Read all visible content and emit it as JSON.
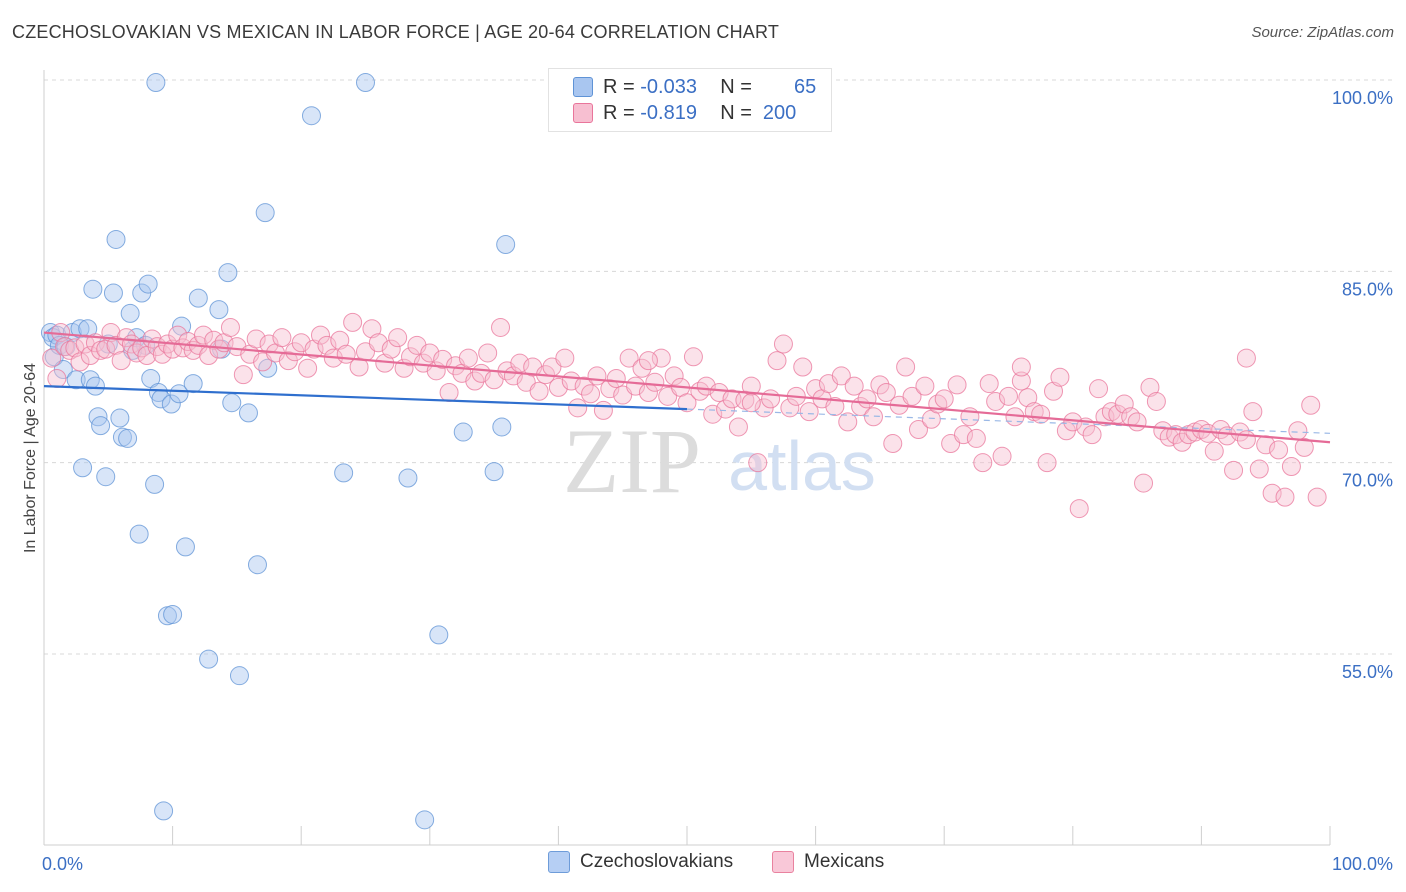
{
  "chart_data": {
    "type": "scatter",
    "title": "CZECHOSLOVAKIAN VS MEXICAN IN LABOR FORCE | AGE 20-64 CORRELATION CHART",
    "source": "Source: ZipAtlas.com",
    "xlabel": "",
    "ylabel": "In Labor Force | Age 20-64",
    "xlim": [
      0,
      100
    ],
    "ylim": [
      41,
      102.5
    ],
    "x_tick_labels": [
      "0.0%",
      "100.0%"
    ],
    "y_ticks": [
      100,
      85,
      70,
      55
    ],
    "y_tick_labels": [
      "100.0%",
      "85.0%",
      "70.0%",
      "55.0%"
    ],
    "grid": true,
    "legend_position": "top-center",
    "watermark": "ZIPatlas",
    "series": [
      {
        "name": "Czechoslovakians",
        "color_fill": "#a9c6f0",
        "color_stroke": "#5f93d6",
        "line_color": "#2f6fce",
        "R": "-0.033",
        "N": "65",
        "trend": {
          "x0": 0,
          "y0": 76.0,
          "x1": 50,
          "y1": 74.2,
          "dash_to_x": 100,
          "dash_to_y": 72.3
        },
        "points": [
          [
            0.5,
            80.2
          ],
          [
            0.7,
            79.8
          ],
          [
            1.0,
            80.0
          ],
          [
            0.8,
            78.3
          ],
          [
            1.2,
            79.2
          ],
          [
            1.5,
            77.3
          ],
          [
            1.7,
            79.1
          ],
          [
            2.2,
            80.2
          ],
          [
            2.5,
            76.5
          ],
          [
            2.8,
            80.5
          ],
          [
            3.0,
            69.6
          ],
          [
            3.4,
            80.5
          ],
          [
            3.6,
            76.5
          ],
          [
            3.8,
            83.6
          ],
          [
            4.0,
            76.0
          ],
          [
            4.2,
            73.6
          ],
          [
            4.4,
            72.9
          ],
          [
            4.8,
            68.9
          ],
          [
            5.0,
            79.3
          ],
          [
            5.4,
            83.3
          ],
          [
            5.6,
            87.5
          ],
          [
            5.9,
            73.5
          ],
          [
            6.1,
            72.0
          ],
          [
            6.5,
            71.9
          ],
          [
            6.7,
            81.7
          ],
          [
            6.9,
            78.8
          ],
          [
            7.2,
            79.8
          ],
          [
            7.4,
            64.4
          ],
          [
            7.6,
            83.3
          ],
          [
            7.9,
            79.2
          ],
          [
            8.1,
            84.0
          ],
          [
            8.3,
            76.6
          ],
          [
            8.6,
            68.3
          ],
          [
            8.7,
            99.8
          ],
          [
            8.9,
            75.5
          ],
          [
            9.1,
            75.0
          ],
          [
            9.3,
            42.7
          ],
          [
            9.6,
            58.0
          ],
          [
            9.9,
            74.6
          ],
          [
            10.0,
            58.1
          ],
          [
            10.5,
            75.4
          ],
          [
            10.7,
            80.7
          ],
          [
            11.0,
            63.4
          ],
          [
            11.6,
            76.2
          ],
          [
            12.0,
            82.9
          ],
          [
            12.8,
            54.6
          ],
          [
            13.6,
            82.0
          ],
          [
            13.8,
            78.9
          ],
          [
            14.3,
            84.9
          ],
          [
            14.6,
            74.7
          ],
          [
            15.2,
            53.3
          ],
          [
            15.9,
            73.9
          ],
          [
            16.6,
            62.0
          ],
          [
            17.2,
            89.6
          ],
          [
            17.4,
            77.4
          ],
          [
            20.8,
            97.2
          ],
          [
            23.3,
            69.2
          ],
          [
            25.0,
            99.8
          ],
          [
            28.3,
            68.8
          ],
          [
            29.6,
            42.0
          ],
          [
            30.7,
            56.5
          ],
          [
            32.6,
            72.4
          ],
          [
            35.0,
            69.3
          ],
          [
            35.6,
            72.8
          ],
          [
            35.9,
            87.1
          ]
        ]
      },
      {
        "name": "Mexicans",
        "color_fill": "#f7bfd1",
        "color_stroke": "#e9759b",
        "line_color": "#e56b97",
        "R": "-0.819",
        "N": "200",
        "trend": {
          "x0": 0,
          "y0": 80.2,
          "x1": 100,
          "y1": 71.6
        },
        "points": [
          [
            0.6,
            78.2
          ],
          [
            1.0,
            76.6
          ],
          [
            1.3,
            80.2
          ],
          [
            1.6,
            79.1
          ],
          [
            2.0,
            78.8
          ],
          [
            2.4,
            79.0
          ],
          [
            2.8,
            77.9
          ],
          [
            3.2,
            79.3
          ],
          [
            3.6,
            78.4
          ],
          [
            4.0,
            79.4
          ],
          [
            4.4,
            78.8
          ],
          [
            4.8,
            78.9
          ],
          [
            5.2,
            80.2
          ],
          [
            5.6,
            79.2
          ],
          [
            6.0,
            78.0
          ],
          [
            6.4,
            79.8
          ],
          [
            6.8,
            79.3
          ],
          [
            7.2,
            78.6
          ],
          [
            7.6,
            79.0
          ],
          [
            8.0,
            78.4
          ],
          [
            8.4,
            79.7
          ],
          [
            8.8,
            79.1
          ],
          [
            9.2,
            78.5
          ],
          [
            9.6,
            79.3
          ],
          [
            10.0,
            78.9
          ],
          [
            10.4,
            80.0
          ],
          [
            10.8,
            79.0
          ],
          [
            11.2,
            79.5
          ],
          [
            11.6,
            78.8
          ],
          [
            12.0,
            79.2
          ],
          [
            12.4,
            80.0
          ],
          [
            12.8,
            78.4
          ],
          [
            13.2,
            79.6
          ],
          [
            13.6,
            78.9
          ],
          [
            14.0,
            79.4
          ],
          [
            14.5,
            80.6
          ],
          [
            15.0,
            79.1
          ],
          [
            15.5,
            76.9
          ],
          [
            16.0,
            78.5
          ],
          [
            16.5,
            79.7
          ],
          [
            17.0,
            77.9
          ],
          [
            17.5,
            79.3
          ],
          [
            18.0,
            78.6
          ],
          [
            18.5,
            79.8
          ],
          [
            19.0,
            78.0
          ],
          [
            19.5,
            78.7
          ],
          [
            20.0,
            79.4
          ],
          [
            20.5,
            77.4
          ],
          [
            21.0,
            78.9
          ],
          [
            21.5,
            80.0
          ],
          [
            22.0,
            79.2
          ],
          [
            22.5,
            78.2
          ],
          [
            23.0,
            79.6
          ],
          [
            23.5,
            78.5
          ],
          [
            24.0,
            81.0
          ],
          [
            24.5,
            77.5
          ],
          [
            25.0,
            78.7
          ],
          [
            25.5,
            80.5
          ],
          [
            26.0,
            79.4
          ],
          [
            26.5,
            77.8
          ],
          [
            27.0,
            78.9
          ],
          [
            27.5,
            79.8
          ],
          [
            28.0,
            77.4
          ],
          [
            28.5,
            78.3
          ],
          [
            29.0,
            79.2
          ],
          [
            29.5,
            77.8
          ],
          [
            30.0,
            78.6
          ],
          [
            30.5,
            77.2
          ],
          [
            31.0,
            78.1
          ],
          [
            31.5,
            75.5
          ],
          [
            32.0,
            77.6
          ],
          [
            32.5,
            77.0
          ],
          [
            33.0,
            78.2
          ],
          [
            33.5,
            76.4
          ],
          [
            34.0,
            77.0
          ],
          [
            34.5,
            78.6
          ],
          [
            35.0,
            76.5
          ],
          [
            35.5,
            80.6
          ],
          [
            36.0,
            77.2
          ],
          [
            36.5,
            76.8
          ],
          [
            37.0,
            77.8
          ],
          [
            37.5,
            76.3
          ],
          [
            38.0,
            77.5
          ],
          [
            38.5,
            75.6
          ],
          [
            39.0,
            76.9
          ],
          [
            39.5,
            77.5
          ],
          [
            40.0,
            75.9
          ],
          [
            40.5,
            78.2
          ],
          [
            41.0,
            76.4
          ],
          [
            41.5,
            74.3
          ],
          [
            42.0,
            76.0
          ],
          [
            42.5,
            75.4
          ],
          [
            43.0,
            76.8
          ],
          [
            43.5,
            74.1
          ],
          [
            44.0,
            75.8
          ],
          [
            44.5,
            76.6
          ],
          [
            45.0,
            75.3
          ],
          [
            45.5,
            78.2
          ],
          [
            46.0,
            76.0
          ],
          [
            46.5,
            77.4
          ],
          [
            47.0,
            75.5
          ],
          [
            47.5,
            76.3
          ],
          [
            48.0,
            78.2
          ],
          [
            48.5,
            75.2
          ],
          [
            49.0,
            76.8
          ],
          [
            49.5,
            75.9
          ],
          [
            50.0,
            74.7
          ],
          [
            50.5,
            78.3
          ],
          [
            51.0,
            75.6
          ],
          [
            51.5,
            76.0
          ],
          [
            52.0,
            73.8
          ],
          [
            52.5,
            75.5
          ],
          [
            53.0,
            74.2
          ],
          [
            53.5,
            75.0
          ],
          [
            54.0,
            72.8
          ],
          [
            54.5,
            74.9
          ],
          [
            55.0,
            76.0
          ],
          [
            55.5,
            70.0
          ],
          [
            56.0,
            74.3
          ],
          [
            56.5,
            75.0
          ],
          [
            57.0,
            78.0
          ],
          [
            57.5,
            79.3
          ],
          [
            58.0,
            74.3
          ],
          [
            58.5,
            75.2
          ],
          [
            59.0,
            77.5
          ],
          [
            59.5,
            74.0
          ],
          [
            60.0,
            75.8
          ],
          [
            60.5,
            75.0
          ],
          [
            61.0,
            76.2
          ],
          [
            61.5,
            74.4
          ],
          [
            62.0,
            76.8
          ],
          [
            62.5,
            73.2
          ],
          [
            63.0,
            76.0
          ],
          [
            63.5,
            74.4
          ],
          [
            64.0,
            75.0
          ],
          [
            64.5,
            73.6
          ],
          [
            65.0,
            76.1
          ],
          [
            65.5,
            75.5
          ],
          [
            66.0,
            71.5
          ],
          [
            66.5,
            74.5
          ],
          [
            67.0,
            77.5
          ],
          [
            67.5,
            75.2
          ],
          [
            68.0,
            72.6
          ],
          [
            68.5,
            76.0
          ],
          [
            69.0,
            73.4
          ],
          [
            69.5,
            74.6
          ],
          [
            70.0,
            75.0
          ],
          [
            70.5,
            71.5
          ],
          [
            71.0,
            76.1
          ],
          [
            71.5,
            72.2
          ],
          [
            72.0,
            73.6
          ],
          [
            72.5,
            71.9
          ],
          [
            73.0,
            70.0
          ],
          [
            73.5,
            76.2
          ],
          [
            74.0,
            74.8
          ],
          [
            74.5,
            70.5
          ],
          [
            75.0,
            75.2
          ],
          [
            75.5,
            73.6
          ],
          [
            76.0,
            76.4
          ],
          [
            76.5,
            75.1
          ],
          [
            77.0,
            74.0
          ],
          [
            77.5,
            73.8
          ],
          [
            78.0,
            70.0
          ],
          [
            78.5,
            75.6
          ],
          [
            79.0,
            76.7
          ],
          [
            79.5,
            72.5
          ],
          [
            80.0,
            73.2
          ],
          [
            80.5,
            66.4
          ],
          [
            81.0,
            72.8
          ],
          [
            81.5,
            72.2
          ],
          [
            82.0,
            75.8
          ],
          [
            82.5,
            73.6
          ],
          [
            83.0,
            74.0
          ],
          [
            83.5,
            73.8
          ],
          [
            84.0,
            74.6
          ],
          [
            84.5,
            73.6
          ],
          [
            85.0,
            73.2
          ],
          [
            85.5,
            68.4
          ],
          [
            86.0,
            75.9
          ],
          [
            86.5,
            74.8
          ],
          [
            87.0,
            72.5
          ],
          [
            87.5,
            72.0
          ],
          [
            88.0,
            72.2
          ],
          [
            88.5,
            71.6
          ],
          [
            89.0,
            72.2
          ],
          [
            89.5,
            72.4
          ],
          [
            90.0,
            72.6
          ],
          [
            90.5,
            72.3
          ],
          [
            91.0,
            70.9
          ],
          [
            91.5,
            72.6
          ],
          [
            92.0,
            72.1
          ],
          [
            92.5,
            69.4
          ],
          [
            93.0,
            72.4
          ],
          [
            93.5,
            71.8
          ],
          [
            94.0,
            74.0
          ],
          [
            94.5,
            69.5
          ],
          [
            95.0,
            71.4
          ],
          [
            95.5,
            67.6
          ],
          [
            96.0,
            71.0
          ],
          [
            96.5,
            67.3
          ],
          [
            97.0,
            69.7
          ],
          [
            97.5,
            72.5
          ],
          [
            98.0,
            71.2
          ],
          [
            98.5,
            74.5
          ],
          [
            99.0,
            67.3
          ],
          [
            47.0,
            78.0
          ],
          [
            55.0,
            74.7
          ],
          [
            76.0,
            77.5
          ],
          [
            93.5,
            78.2
          ]
        ]
      }
    ]
  }
}
